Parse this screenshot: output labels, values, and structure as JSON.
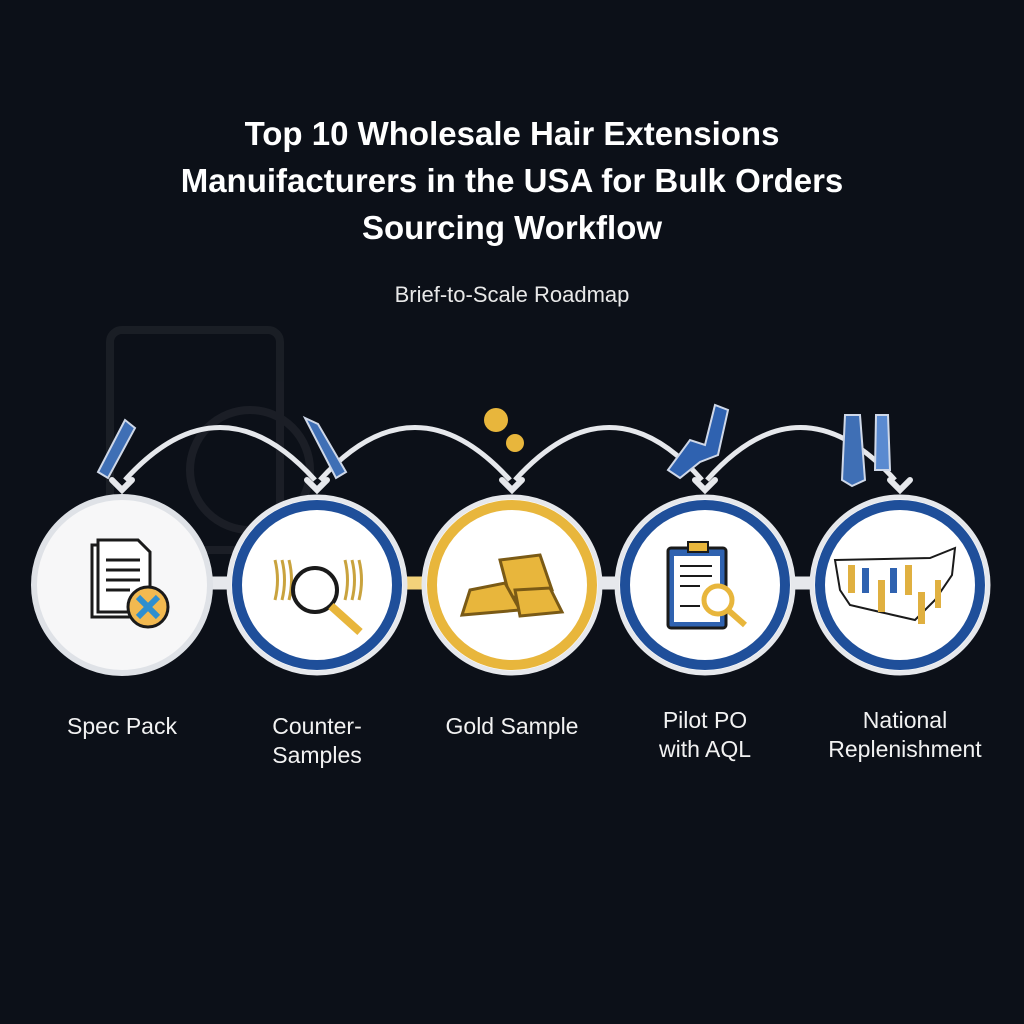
{
  "header": {
    "title_lines": [
      "Top 10 Wholesale Hair Extensions",
      "Manuifacturers in the USA for Bulk Orders",
      "Sourcing Workflow"
    ],
    "subtitle": "Brief-to-Scale Roadmap"
  },
  "colors": {
    "background": "#0c1018",
    "blue": "#1f4f9a",
    "gold": "#e8b63c",
    "ring_outer": "#e6e8ec",
    "arrow": "#e6e8ec"
  },
  "steps": [
    {
      "label_lines": [
        "Spec Pack"
      ],
      "ring": "white",
      "icon": "document-icon"
    },
    {
      "label_lines": [
        "Counter-",
        "Samples"
      ],
      "ring": "blue",
      "icon": "magnifier-hair-icon"
    },
    {
      "label_lines": [
        "Gold Sample"
      ],
      "ring": "gold",
      "icon": "gold-bars-icon"
    },
    {
      "label_lines": [
        "Pilot PO",
        "with AQL"
      ],
      "ring": "blue",
      "icon": "clipboard-inspect-icon"
    },
    {
      "label_lines": [
        "National",
        "Replenishment"
      ],
      "ring": "blue",
      "icon": "usa-map-icon"
    }
  ]
}
